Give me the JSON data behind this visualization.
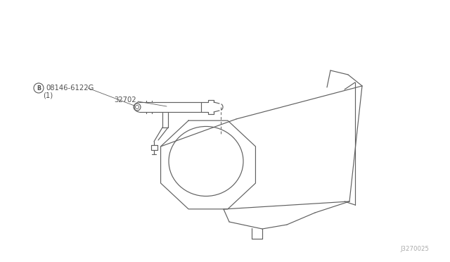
{
  "bg_color": "#ffffff",
  "line_color": "#606060",
  "text_color": "#505050",
  "part_num": "08146-6122G",
  "label_1": "(1)",
  "part_32702": "32702",
  "diagram_id": "J3270025",
  "figsize": [
    6.4,
    3.72
  ],
  "dpi": 100
}
